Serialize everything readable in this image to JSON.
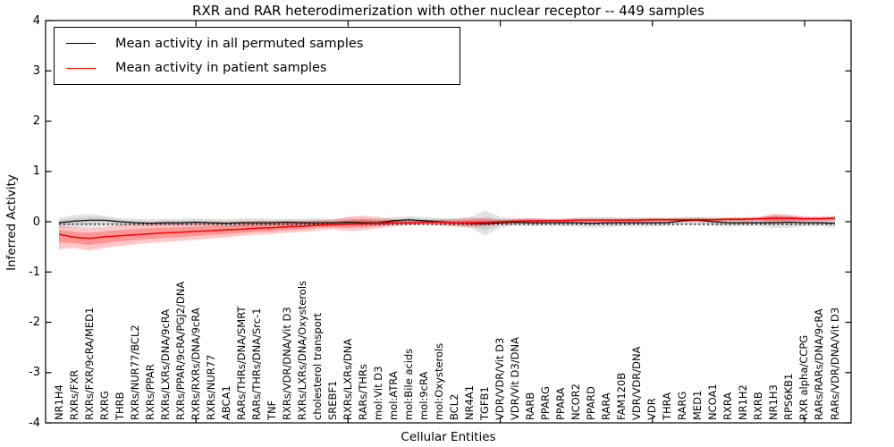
{
  "title": "RXR and RAR heterodimerization with other nuclear receptor -- 449 samples",
  "xlabel": "Cellular Entities",
  "ylabel": "Inferred Activity",
  "legend": {
    "entries": [
      {
        "label": "Mean activity in all permuted samples",
        "color": "#000000"
      },
      {
        "label": "Mean activity in patient samples",
        "color": "#ff0000"
      }
    ]
  },
  "colors": {
    "permuted_line": "#000000",
    "patient_line": "#ff0000",
    "permuted_band": "#999999",
    "patient_band": "#ff0000",
    "frame": "#000000"
  },
  "chart_data": {
    "type": "line",
    "title": "RXR and RAR heterodimerization with other nuclear receptor -- 449 samples",
    "xlabel": "Cellular Entities",
    "ylabel": "Inferred Activity",
    "ylim": [
      -4,
      4
    ],
    "yticks": [
      -4,
      -3,
      -2,
      -1,
      0,
      1,
      2,
      3,
      4
    ],
    "x_major_tick_values": [
      10,
      20,
      30,
      40,
      50
    ],
    "grid": false,
    "legend_position": "upper left",
    "baseline_dotted": -0.05,
    "categories": [
      "NR1H4",
      "RXRs/FXR",
      "RXRs/FXR/9cRA/MED1",
      "RXRG",
      "THRB",
      "RXRs/NUR77/BCL2",
      "RXRs/PPAR",
      "RXRs/LXRs/DNA/9cRA",
      "RXRs/PPAR/9cRA/PGJ2/DNA",
      "RXRs/RXRs/DNA/9cRA",
      "RXRs/NUR77",
      "ABCA1",
      "RARs/THRs/DNA/SMRT",
      "RARs/THRs/DNA/Src-1",
      "TNF",
      "RXRs/VDR/DNA/Vit D3",
      "RXRs/LXRs/DNA/Oxysterols",
      "cholesterol transport",
      "SREBF1",
      "RXRs/LXRs/DNA",
      "RARs/THRs",
      "mol:Vit D3",
      "mol:ATRA",
      "mol:Bile acids",
      "mol:9cRA",
      "mol:Oxysterols",
      "BCL2",
      "NR4A1",
      "TGFB1",
      "VDR/VDR/Vit D3",
      "VDR/Vit D3/DNA",
      "RARB",
      "PPARG",
      "PPARA",
      "NCOR2",
      "PPARD",
      "RARA",
      "FAM120B",
      "VDR/VDR/DNA",
      "VDR",
      "THRA",
      "RARG",
      "MED1",
      "NCOA1",
      "RXRA",
      "NR1H2",
      "RXRB",
      "NR1H3",
      "RPS6KB1",
      "RXR alpha/CCPG",
      "RARs/RARs/DNA/9cRA",
      "RARs/VDR/DNA/Vit D3"
    ],
    "series": [
      {
        "name": "Mean activity in all permuted samples",
        "role": "permuted_mean",
        "color": "#000000",
        "values": [
          -0.02,
          0.01,
          0.03,
          0.03,
          0.0,
          -0.02,
          -0.03,
          -0.02,
          -0.02,
          -0.01,
          -0.02,
          -0.03,
          -0.02,
          -0.02,
          -0.02,
          -0.01,
          -0.02,
          -0.02,
          -0.02,
          -0.01,
          -0.02,
          -0.02,
          0.02,
          0.04,
          0.02,
          0.0,
          -0.02,
          -0.03,
          -0.04,
          -0.02,
          -0.01,
          -0.02,
          -0.02,
          -0.02,
          -0.02,
          -0.03,
          -0.02,
          -0.02,
          -0.02,
          -0.02,
          -0.02,
          0.02,
          0.03,
          0.0,
          -0.02,
          -0.02,
          -0.02,
          -0.02,
          -0.01,
          -0.02,
          -0.02,
          -0.03
        ]
      },
      {
        "name": "Permuted band upper",
        "role": "permuted_upper",
        "color": "#999999",
        "values": [
          0.08,
          0.13,
          0.15,
          0.12,
          0.07,
          0.06,
          0.05,
          0.06,
          0.06,
          0.07,
          0.06,
          0.05,
          0.07,
          0.07,
          0.06,
          0.06,
          0.06,
          0.07,
          0.06,
          0.07,
          0.07,
          0.06,
          0.09,
          0.11,
          0.09,
          0.07,
          0.07,
          0.09,
          0.22,
          0.1,
          0.07,
          0.07,
          0.06,
          0.06,
          0.08,
          0.1,
          0.09,
          0.08,
          0.09,
          0.08,
          0.07,
          0.09,
          0.1,
          0.08,
          0.07,
          0.07,
          0.08,
          0.12,
          0.11,
          0.08,
          0.08,
          0.07
        ]
      },
      {
        "name": "Permuted band lower",
        "role": "permuted_lower",
        "color": "#999999",
        "values": [
          -0.13,
          -0.12,
          -0.11,
          -0.09,
          -0.09,
          -0.09,
          -0.1,
          -0.09,
          -0.09,
          -0.08,
          -0.09,
          -0.1,
          -0.1,
          -0.09,
          -0.09,
          -0.08,
          -0.09,
          -0.09,
          -0.09,
          -0.08,
          -0.09,
          -0.09,
          -0.07,
          -0.06,
          -0.07,
          -0.08,
          -0.1,
          -0.12,
          -0.27,
          -0.12,
          -0.08,
          -0.09,
          -0.09,
          -0.09,
          -0.1,
          -0.12,
          -0.11,
          -0.1,
          -0.1,
          -0.1,
          -0.09,
          -0.07,
          -0.07,
          -0.09,
          -0.1,
          -0.09,
          -0.09,
          -0.13,
          -0.12,
          -0.1,
          -0.09,
          -0.12
        ]
      },
      {
        "name": "Mean activity in patient samples",
        "role": "patient_mean",
        "color": "#ff0000",
        "values": [
          -0.25,
          -0.31,
          -0.33,
          -0.3,
          -0.28,
          -0.26,
          -0.24,
          -0.22,
          -0.21,
          -0.19,
          -0.18,
          -0.16,
          -0.15,
          -0.13,
          -0.12,
          -0.1,
          -0.09,
          -0.07,
          -0.06,
          -0.05,
          -0.04,
          -0.03,
          -0.02,
          -0.02,
          -0.01,
          -0.01,
          -0.02,
          -0.02,
          -0.01,
          0.0,
          0.01,
          0.02,
          0.02,
          0.02,
          0.03,
          0.03,
          0.03,
          0.03,
          0.03,
          0.04,
          0.04,
          0.04,
          0.04,
          0.04,
          0.05,
          0.05,
          0.06,
          0.07,
          0.07,
          0.06,
          0.06,
          0.07
        ]
      },
      {
        "name": "Patient band upper",
        "role": "patient_upper",
        "color": "#ff0000",
        "values": [
          -0.08,
          -0.11,
          -0.12,
          -0.1,
          -0.07,
          -0.05,
          -0.04,
          -0.03,
          -0.03,
          -0.02,
          -0.01,
          -0.01,
          0.0,
          0.01,
          0.01,
          0.02,
          0.02,
          0.03,
          0.04,
          0.1,
          0.12,
          0.09,
          0.05,
          0.03,
          0.04,
          0.05,
          0.06,
          0.08,
          0.07,
          0.05,
          0.06,
          0.07,
          0.06,
          0.06,
          0.07,
          0.07,
          0.07,
          0.07,
          0.07,
          0.08,
          0.08,
          0.08,
          0.08,
          0.08,
          0.09,
          0.09,
          0.1,
          0.16,
          0.14,
          0.11,
          0.1,
          0.12
        ]
      },
      {
        "name": "Patient band lower",
        "role": "patient_lower",
        "color": "#ff0000",
        "values": [
          -0.55,
          -0.52,
          -0.57,
          -0.52,
          -0.48,
          -0.45,
          -0.42,
          -0.4,
          -0.38,
          -0.36,
          -0.33,
          -0.31,
          -0.28,
          -0.26,
          -0.24,
          -0.22,
          -0.2,
          -0.17,
          -0.15,
          -0.18,
          -0.17,
          -0.13,
          -0.09,
          -0.07,
          -0.06,
          -0.07,
          -0.09,
          -0.11,
          -0.09,
          -0.05,
          -0.04,
          -0.03,
          -0.02,
          -0.02,
          -0.01,
          -0.01,
          -0.01,
          -0.01,
          -0.01,
          0.0,
          0.0,
          0.0,
          0.0,
          0.0,
          0.01,
          0.01,
          0.02,
          -0.02,
          0.0,
          0.01,
          0.02,
          0.02
        ]
      }
    ]
  }
}
